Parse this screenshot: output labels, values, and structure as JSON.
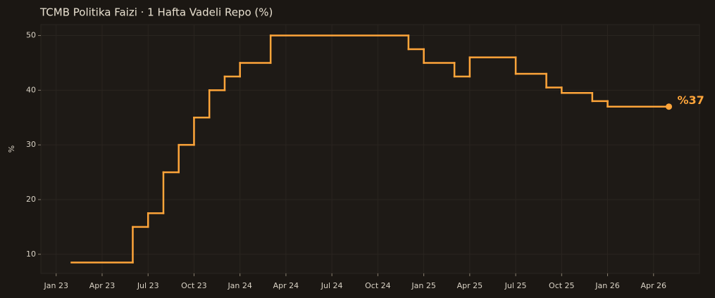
{
  "chart_data": {
    "type": "step",
    "title": "TCMB Politika Faizi · 1 Hafta Vadeli Repo (%)",
    "y_label": "%",
    "series": [
      {
        "name": "Politika Faizi",
        "color": "#ffa53a",
        "x": [
          "2023-02",
          "2023-06",
          "2023-07",
          "2023-08",
          "2023-09",
          "2023-10",
          "2023-11",
          "2023-12",
          "2024-01",
          "2024-03",
          "2024-12",
          "2025-01",
          "2025-03",
          "2025-04",
          "2025-07",
          "2025-09",
          "2025-10",
          "2025-12",
          "2026-01",
          "2026-05"
        ],
        "values": [
          8.5,
          15,
          17.5,
          25,
          30,
          35,
          40,
          42.5,
          45,
          50,
          47.5,
          45,
          42.5,
          46,
          43,
          40.5,
          39.5,
          38,
          37,
          37
        ],
        "value_labels": [
          null,
          null,
          null,
          null,
          null,
          null,
          null,
          null,
          null,
          null,
          null,
          null,
          null,
          null,
          null,
          null,
          null,
          null,
          null,
          "%37"
        ]
      }
    ],
    "xlim": [
      "2022-12",
      "2026-07"
    ],
    "xticks": [
      {
        "value": "2023-01",
        "label": "Jan 23"
      },
      {
        "value": "2023-04",
        "label": "Apr 23"
      },
      {
        "value": "2023-07",
        "label": "Jul 23"
      },
      {
        "value": "2023-10",
        "label": "Oct 23"
      },
      {
        "value": "2024-01",
        "label": "Jan 24"
      },
      {
        "value": "2024-04",
        "label": "Apr 24"
      },
      {
        "value": "2024-07",
        "label": "Jul 24"
      },
      {
        "value": "2024-10",
        "label": "Oct 24"
      },
      {
        "value": "2025-01",
        "label": "Jan 25"
      },
      {
        "value": "2025-04",
        "label": "Apr 25"
      },
      {
        "value": "2025-07",
        "label": "Jul 25"
      },
      {
        "value": "2025-10",
        "label": "Oct 25"
      },
      {
        "value": "2026-01",
        "label": "Jan 26"
      },
      {
        "value": "2026-04",
        "label": "Apr 26"
      }
    ],
    "ylim": [
      6.5,
      52
    ],
    "yticks": [
      10,
      20,
      30,
      40,
      50
    ],
    "grid": true
  }
}
